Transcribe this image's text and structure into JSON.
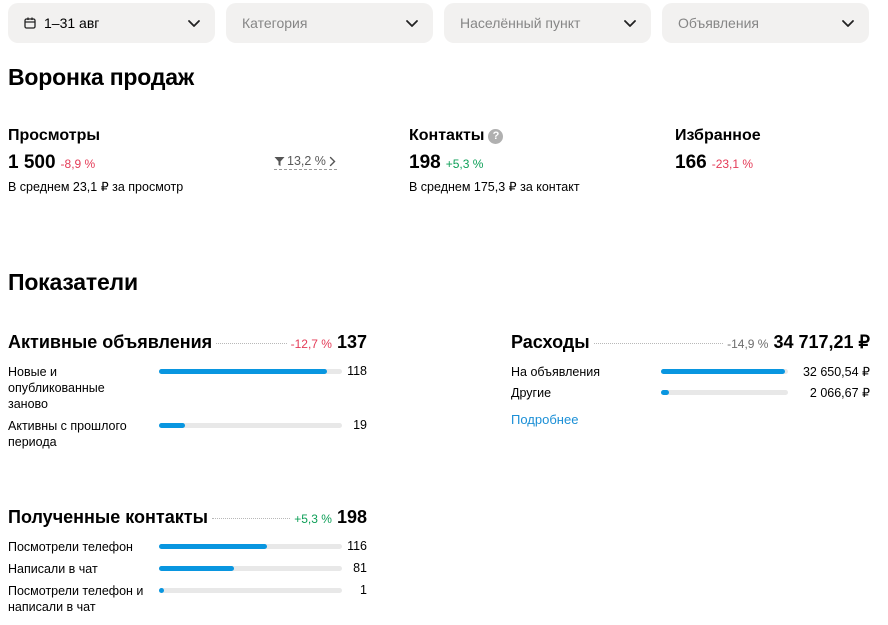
{
  "filters": [
    {
      "label": "1–31 авг",
      "icon": "calendar-icon",
      "active": true
    },
    {
      "label": "Категория",
      "active": false
    },
    {
      "label": "Населённый пункт",
      "active": false
    },
    {
      "label": "Объявления",
      "active": false
    }
  ],
  "funnel": {
    "title": "Воронка продаж",
    "views": {
      "title": "Просмотры",
      "value": "1 500",
      "delta": "-8,9 %",
      "sub": "В среднем 23,1 ₽ за просмотр"
    },
    "conversion": {
      "value": "13,2 %",
      "icon": "filter-icon"
    },
    "contacts": {
      "title": "Контакты",
      "value": "198",
      "delta": "+5,3 %",
      "sub": "В среднем 175,3 ₽ за контакт",
      "help": "?"
    },
    "favorites": {
      "title": "Избранное",
      "value": "166",
      "delta": "-23,1 %"
    }
  },
  "metrics": {
    "title": "Показатели",
    "active_ads": {
      "title": "Активные объявления",
      "delta": "-12,7 %",
      "total": "137",
      "rows": [
        {
          "label": "Новые и опубликованные заново",
          "value": "118",
          "fraction": 0.92
        },
        {
          "label": "Активны с прошлого периода",
          "value": "19",
          "fraction": 0.14
        }
      ]
    },
    "expenses": {
      "title": "Расходы",
      "delta": "-14,9 %",
      "total": "34 717,21 ₽",
      "rows": [
        {
          "label": "На объявления",
          "value": "32 650,54 ₽",
          "fraction": 0.98
        },
        {
          "label": "Другие",
          "value": "2 066,67 ₽",
          "fraction": 0.06
        }
      ],
      "more_link": "Подробнее"
    },
    "contacts": {
      "title": "Полученные контакты",
      "delta": "+5,3 %",
      "total": "198",
      "rows": [
        {
          "label": "Посмотрели телефон",
          "value": "116",
          "fraction": 0.59
        },
        {
          "label": "Написали в чат",
          "value": "81",
          "fraction": 0.41
        },
        {
          "label": "Посмотрели телефон и написали в чат",
          "value": "1",
          "fraction": 0.03
        }
      ]
    }
  },
  "colors": {
    "accent": "#0996e0",
    "negative": "#e43b57",
    "positive": "#0d9f57",
    "link": "#1b8fd6"
  }
}
